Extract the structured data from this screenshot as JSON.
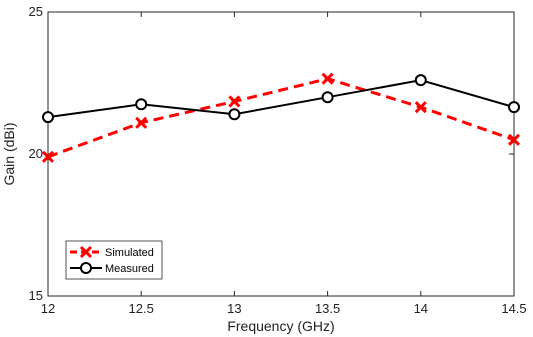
{
  "chart_data": {
    "type": "line",
    "title": "",
    "xlabel": "Frequency (GHz)",
    "ylabel": "Gain (dBi)",
    "x": [
      12,
      12.5,
      13,
      13.5,
      14,
      14.5
    ],
    "x_ticks": [
      "12",
      "12.5",
      "13",
      "13.5",
      "14",
      "14.5"
    ],
    "y_ticks": [
      "15",
      "20",
      "25"
    ],
    "xlim": [
      12,
      14.5
    ],
    "ylim": [
      15,
      25
    ],
    "grid": false,
    "legend_position": "bottom-left",
    "series": [
      {
        "name": "Simulated",
        "values": [
          19.9,
          21.1,
          21.85,
          22.65,
          21.65,
          20.5
        ],
        "color": "#ff0000",
        "line_style": "dashed",
        "marker": "x"
      },
      {
        "name": "Measured",
        "values": [
          21.3,
          21.75,
          21.4,
          22.0,
          22.6,
          21.65
        ],
        "color": "#000000",
        "line_style": "solid",
        "marker": "circle"
      }
    ]
  }
}
